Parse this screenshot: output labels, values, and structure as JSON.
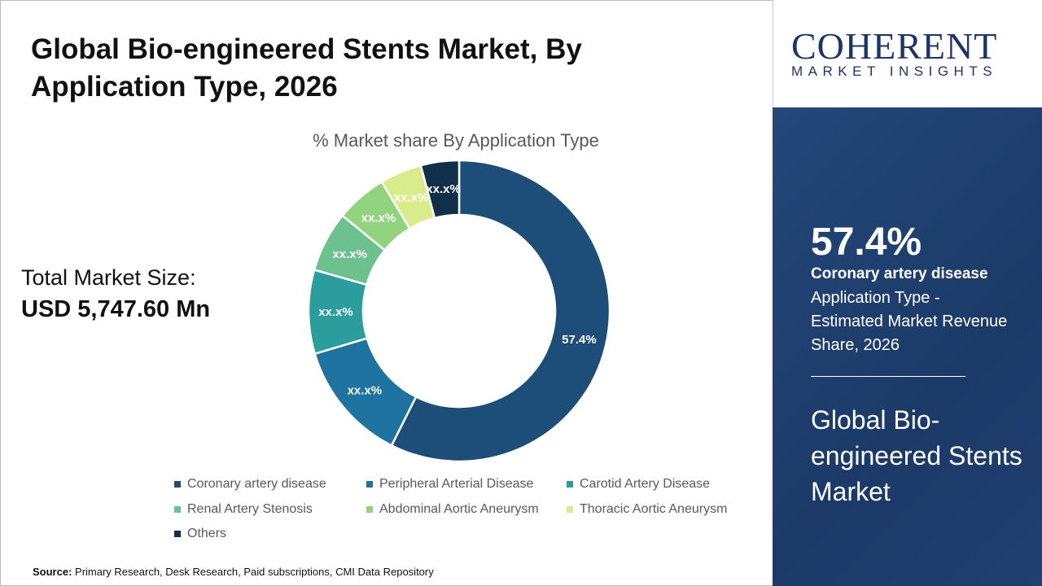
{
  "title": "Global Bio-engineered Stents Market, By Application Type, 2026",
  "total_label": "Total Market Size:",
  "total_value": "USD 5,747.60 Mn",
  "source_label": "Source:",
  "source_text": "Primary Research, Desk Research, Paid subscriptions, CMI Data Repository",
  "logo": {
    "main": "COHERENT",
    "sub": "MARKET INSIGHTS"
  },
  "panel": {
    "percent": "57.4%",
    "segment": "Coronary artery disease",
    "description": "Application Type - Estimated Market Revenue Share, 2026",
    "market": "Global Bio-engineered Stents Market"
  },
  "chart_data": {
    "type": "pie",
    "subtype": "donut",
    "title": "% Market share By Application Type",
    "legend_position": "bottom",
    "categories": [
      "Coronary artery disease",
      "Peripheral Arterial Disease",
      "Carotid Artery Disease",
      "Renal Artery Stenosis",
      "Abdominal Aortic Aneurysm",
      "Thoracic Aortic Aneurysm",
      "Others"
    ],
    "values": [
      57.4,
      13.0,
      9.0,
      6.5,
      5.5,
      4.5,
      4.1
    ],
    "labels": [
      "57.4%",
      "xx.x%",
      "xx.x%",
      "xx.x%",
      "xx.x%",
      "xx.x%",
      "xx.x%"
    ],
    "colors": [
      "#1d4e79",
      "#1f73a0",
      "#2a9d9c",
      "#6cc18f",
      "#91d37e",
      "#d8ec8c",
      "#10304a"
    ]
  }
}
